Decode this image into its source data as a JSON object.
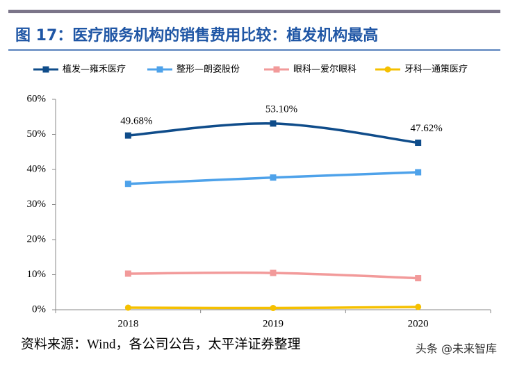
{
  "chart_data": {
    "type": "line",
    "title": "图 17：医疗服务机构的销售费用比较：植发机构最高",
    "categories": [
      "2018",
      "2019",
      "2020"
    ],
    "series": [
      {
        "name": "植发—雍禾医疗",
        "color": "#0f4c8a",
        "marker": "square",
        "values": [
          49.68,
          53.1,
          47.62
        ],
        "value_labels": [
          "49.68%",
          "53.10%",
          "47.62%"
        ]
      },
      {
        "name": "整形—朗姿股份",
        "color": "#4ea2ea",
        "marker": "square",
        "values": [
          35.9,
          37.7,
          39.2
        ]
      },
      {
        "name": "眼科—爱尔眼科",
        "color": "#f29a9a",
        "marker": "square",
        "values": [
          10.3,
          10.5,
          9.0
        ]
      },
      {
        "name": "牙科—通策医疗",
        "color": "#f5c000",
        "marker": "circle",
        "values": [
          0.6,
          0.5,
          0.8
        ]
      }
    ],
    "ylim": [
      0,
      60
    ],
    "yticks": [
      {
        "value": 0,
        "label": "0%"
      },
      {
        "value": 10,
        "label": "10%"
      },
      {
        "value": 20,
        "label": "20%"
      },
      {
        "value": 30,
        "label": "30%"
      },
      {
        "value": 40,
        "label": "40%"
      },
      {
        "value": 50,
        "label": "50%"
      },
      {
        "value": 60,
        "label": "60%"
      }
    ],
    "grid": false,
    "legend": "top",
    "smooth": true,
    "source": "资料来源：Wind，各公司公告，太平洋证券整理",
    "watermark": "头条 @未来智库"
  }
}
